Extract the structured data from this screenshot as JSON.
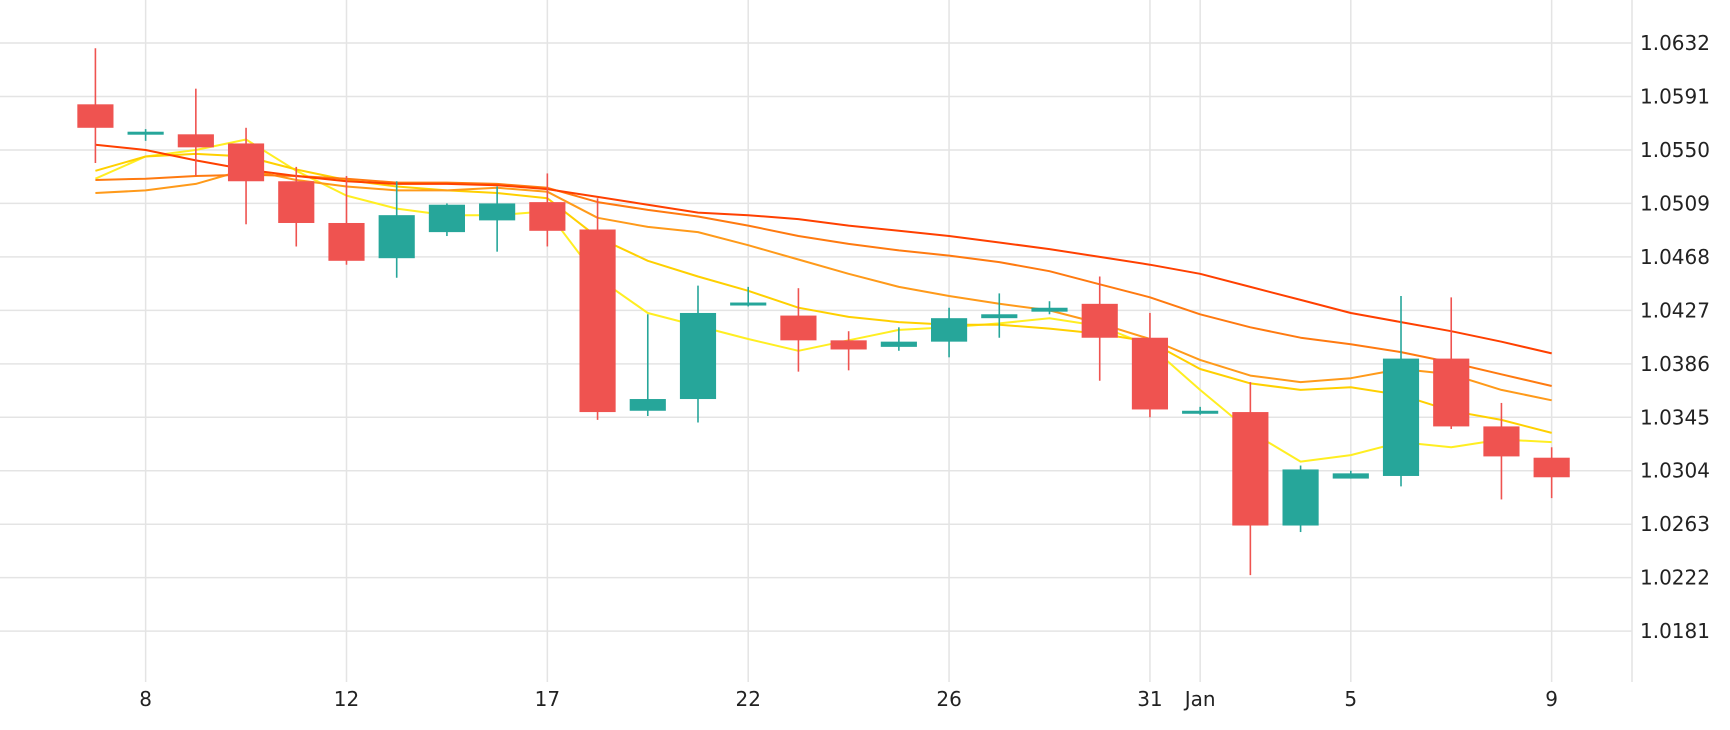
{
  "chart_data": {
    "type": "candlestick",
    "x_ticks": [
      {
        "x": 1,
        "label": "8"
      },
      {
        "x": 5,
        "label": "12"
      },
      {
        "x": 9,
        "label": "17"
      },
      {
        "x": 13,
        "label": "22"
      },
      {
        "x": 17,
        "label": "26"
      },
      {
        "x": 21,
        "label": "31"
      },
      {
        "x": 22,
        "label": "Jan"
      },
      {
        "x": 25,
        "label": "5"
      },
      {
        "x": 29,
        "label": "9"
      }
    ],
    "y_ticks": [
      "1.0632",
      "1.0591",
      "1.0550",
      "1.0509",
      "1.0468",
      "1.0427",
      "1.0386",
      "1.0345",
      "1.0304",
      "1.0263",
      "1.0222",
      "1.0181"
    ],
    "ylim": [
      1.0142,
      1.0665
    ],
    "xlim": [
      -1.9,
      30.6
    ],
    "candles": [
      {
        "x": 0,
        "o": 1.0585,
        "h": 1.0628,
        "l": 1.054,
        "c": 1.0567
      },
      {
        "x": 1,
        "o": 1.0562,
        "h": 1.0566,
        "l": 1.0557,
        "c": 1.0564
      },
      {
        "x": 2,
        "o": 1.0562,
        "h": 1.0597,
        "l": 1.053,
        "c": 1.0552
      },
      {
        "x": 3,
        "o": 1.0555,
        "h": 1.0567,
        "l": 1.0493,
        "c": 1.0526
      },
      {
        "x": 4,
        "o": 1.0526,
        "h": 1.0537,
        "l": 1.0476,
        "c": 1.0494
      },
      {
        "x": 5,
        "o": 1.0494,
        "h": 1.053,
        "l": 1.0462,
        "c": 1.0465
      },
      {
        "x": 6,
        "o": 1.0467,
        "h": 1.0526,
        "l": 1.0452,
        "c": 1.05
      },
      {
        "x": 7,
        "o": 1.0487,
        "h": 1.0509,
        "l": 1.0484,
        "c": 1.0508
      },
      {
        "x": 8,
        "o": 1.0496,
        "h": 1.0522,
        "l": 1.0472,
        "c": 1.0509
      },
      {
        "x": 9,
        "o": 1.051,
        "h": 1.0532,
        "l": 1.0476,
        "c": 1.0488
      },
      {
        "x": 10,
        "o": 1.0489,
        "h": 1.0513,
        "l": 1.0343,
        "c": 1.0349
      },
      {
        "x": 11,
        "o": 1.035,
        "h": 1.0424,
        "l": 1.0346,
        "c": 1.0359
      },
      {
        "x": 12,
        "o": 1.0359,
        "h": 1.0446,
        "l": 1.0341,
        "c": 1.0425
      },
      {
        "x": 13,
        "o": 1.0431,
        "h": 1.0445,
        "l": 1.043,
        "c": 1.0433
      },
      {
        "x": 14,
        "o": 1.0423,
        "h": 1.0444,
        "l": 1.038,
        "c": 1.0404
      },
      {
        "x": 15,
        "o": 1.0404,
        "h": 1.0411,
        "l": 1.0381,
        "c": 1.0397
      },
      {
        "x": 16,
        "o": 1.0399,
        "h": 1.0414,
        "l": 1.0396,
        "c": 1.0403
      },
      {
        "x": 17,
        "o": 1.0403,
        "h": 1.0429,
        "l": 1.0391,
        "c": 1.0421
      },
      {
        "x": 18,
        "o": 1.0421,
        "h": 1.044,
        "l": 1.0406,
        "c": 1.0424
      },
      {
        "x": 19,
        "o": 1.0426,
        "h": 1.0434,
        "l": 1.0424,
        "c": 1.0429
      },
      {
        "x": 20,
        "o": 1.0432,
        "h": 1.0453,
        "l": 1.0373,
        "c": 1.0406
      },
      {
        "x": 21,
        "o": 1.0406,
        "h": 1.0425,
        "l": 1.0345,
        "c": 1.0351
      },
      {
        "x": 22,
        "o": 1.0349,
        "h": 1.0353,
        "l": 1.0347,
        "c": 1.035
      },
      {
        "x": 23,
        "o": 1.0349,
        "h": 1.0372,
        "l": 1.0224,
        "c": 1.0262
      },
      {
        "x": 24,
        "o": 1.0262,
        "h": 1.0308,
        "l": 1.0257,
        "c": 1.0305
      },
      {
        "x": 25,
        "o": 1.0298,
        "h": 1.0304,
        "l": 1.0298,
        "c": 1.0302
      },
      {
        "x": 26,
        "o": 1.03,
        "h": 1.0438,
        "l": 1.0292,
        "c": 1.039
      },
      {
        "x": 27,
        "o": 1.039,
        "h": 1.0437,
        "l": 1.0336,
        "c": 1.0338
      },
      {
        "x": 28,
        "o": 1.0338,
        "h": 1.0356,
        "l": 1.0282,
        "c": 1.0315
      },
      {
        "x": 29,
        "o": 1.0314,
        "h": 1.0322,
        "l": 1.0283,
        "c": 1.0299
      }
    ],
    "moving_averages": [
      {
        "color": "#ffee22",
        "values": [
          1.0528,
          1.0545,
          1.055,
          1.0558,
          1.0534,
          1.0515,
          1.0505,
          1.05,
          1.05,
          1.0503,
          1.0452,
          1.0425,
          1.0415,
          1.0405,
          1.0396,
          1.0404,
          1.0412,
          1.0414,
          1.0417,
          1.0421,
          1.0415,
          1.04,
          1.0366,
          1.0334,
          1.0311,
          1.0316,
          1.0326,
          1.0322,
          1.0328,
          1.0326
        ]
      },
      {
        "color": "#ffd000",
        "values": [
          1.0534,
          1.0545,
          1.0547,
          1.0545,
          1.0535,
          1.0527,
          1.0522,
          1.0519,
          1.0517,
          1.0513,
          1.0483,
          1.0465,
          1.0453,
          1.0442,
          1.0429,
          1.0422,
          1.0418,
          1.0416,
          1.0416,
          1.0413,
          1.0409,
          1.0403,
          1.0382,
          1.0371,
          1.0366,
          1.0368,
          1.0362,
          1.035,
          1.0343,
          1.0333
        ]
      },
      {
        "color": "#ff9a1a",
        "values": [
          1.0517,
          1.0519,
          1.0524,
          1.0535,
          1.0527,
          1.0522,
          1.0519,
          1.0519,
          1.0521,
          1.0518,
          1.0498,
          1.0491,
          1.0487,
          1.0477,
          1.0466,
          1.0455,
          1.0445,
          1.0438,
          1.0432,
          1.0427,
          1.0417,
          1.0405,
          1.0389,
          1.0377,
          1.0372,
          1.0375,
          1.0382,
          1.0378,
          1.0366,
          1.0358
        ]
      },
      {
        "color": "#ff7a10",
        "values": [
          1.0527,
          1.0528,
          1.053,
          1.0531,
          1.053,
          1.0528,
          1.0525,
          1.0525,
          1.0524,
          1.0521,
          1.051,
          1.0504,
          1.0499,
          1.0492,
          1.0484,
          1.0478,
          1.0473,
          1.0469,
          1.0464,
          1.0457,
          1.0447,
          1.0437,
          1.0424,
          1.0414,
          1.0406,
          1.0401,
          1.0395,
          1.0387,
          1.0378,
          1.0369
        ]
      },
      {
        "color": "#ff4000",
        "values": [
          1.0554,
          1.055,
          1.0542,
          1.0535,
          1.053,
          1.0526,
          1.0524,
          1.0524,
          1.0523,
          1.052,
          1.0514,
          1.0508,
          1.0502,
          1.05,
          1.0497,
          1.0492,
          1.0488,
          1.0484,
          1.0479,
          1.0474,
          1.0468,
          1.0462,
          1.0455,
          1.0445,
          1.0435,
          1.0425,
          1.0418,
          1.0411,
          1.0403,
          1.0394
        ]
      }
    ],
    "up_color": "#26a69a",
    "down_color": "#ef5350",
    "grid": true,
    "y_axis_position": "right"
  }
}
